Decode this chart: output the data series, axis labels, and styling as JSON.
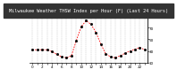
{
  "title": "Milwaukee Weather THSW Index per Hour (F) (Last 24 Hours)",
  "x_values": [
    0,
    1,
    2,
    3,
    4,
    5,
    6,
    7,
    8,
    9,
    10,
    11,
    12,
    13,
    14,
    15,
    16,
    17,
    18,
    19,
    20,
    21,
    22,
    23
  ],
  "y_values": [
    32,
    32,
    32,
    32,
    29,
    24,
    20,
    18,
    22,
    48,
    72,
    82,
    76,
    62,
    42,
    25,
    20,
    18,
    22,
    26,
    30,
    33,
    36,
    32
  ],
  "ylim": [
    10,
    95
  ],
  "line_color": "#ff0000",
  "marker_color": "#000000",
  "bg_color": "#ffffff",
  "title_bg": "#333333",
  "title_color": "#ffffff",
  "grid_color": "#aaaaaa",
  "axis_label_color": "#000000",
  "ytick_labels": [
    "90",
    "70",
    "50",
    "30",
    "10"
  ],
  "ytick_values": [
    90,
    70,
    50,
    30,
    10
  ],
  "title_fontsize": 3.8,
  "tick_fontsize": 3.0
}
